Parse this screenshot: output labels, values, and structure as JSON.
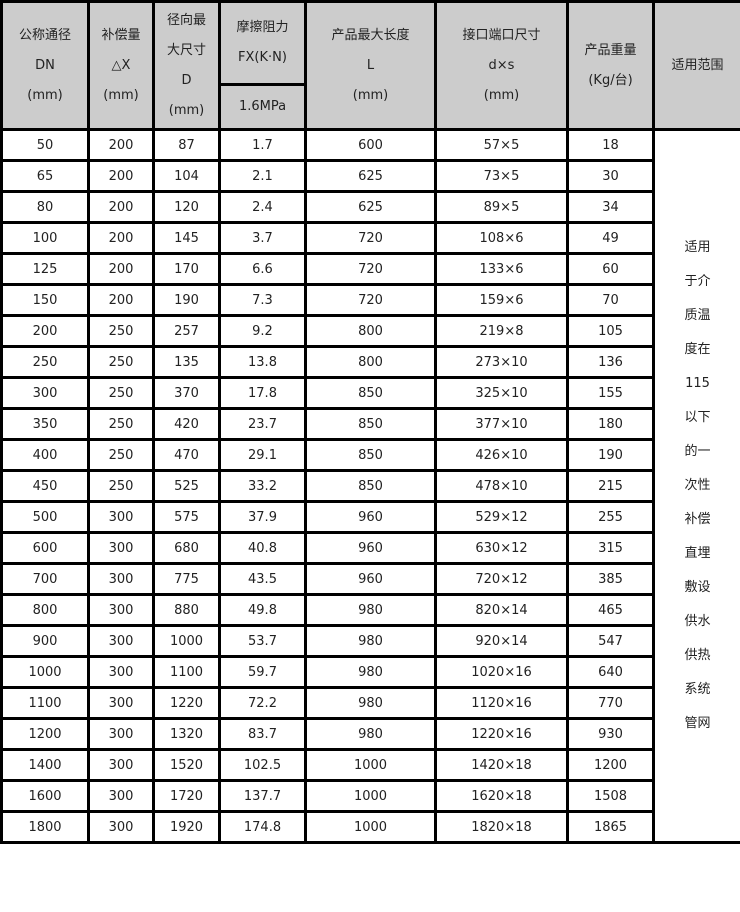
{
  "header": {
    "dn": [
      "公称通径",
      "DN",
      "(mm)"
    ],
    "dx": [
      "补偿量",
      "△X",
      "(mm)"
    ],
    "d": [
      "径向最",
      "大尺寸",
      "D",
      "(mm)"
    ],
    "fx": [
      "摩擦阻力",
      "FX(K·N)"
    ],
    "fx_sub": "1.6MPa",
    "l": [
      "产品最大长度",
      "L",
      "(mm)"
    ],
    "ds": [
      "接口端口尺寸",
      "d×s",
      "(mm)"
    ],
    "weight": [
      "产品重量",
      "(Kg/台)"
    ],
    "scope": "适用范围"
  },
  "rows": [
    [
      "50",
      "200",
      "87",
      "1.7",
      "600",
      "57×5",
      "18"
    ],
    [
      "65",
      "200",
      "104",
      "2.1",
      "625",
      "73×5",
      "30"
    ],
    [
      "80",
      "200",
      "120",
      "2.4",
      "625",
      "89×5",
      "34"
    ],
    [
      "100",
      "200",
      "145",
      "3.7",
      "720",
      "108×6",
      "49"
    ],
    [
      "125",
      "200",
      "170",
      "6.6",
      "720",
      "133×6",
      "60"
    ],
    [
      "150",
      "200",
      "190",
      "7.3",
      "720",
      "159×6",
      "70"
    ],
    [
      "200",
      "250",
      "257",
      "9.2",
      "800",
      "219×8",
      "105"
    ],
    [
      "250",
      "250",
      "135",
      "13.8",
      "800",
      "273×10",
      "136"
    ],
    [
      "300",
      "250",
      "370",
      "17.8",
      "850",
      "325×10",
      "155"
    ],
    [
      "350",
      "250",
      "420",
      "23.7",
      "850",
      "377×10",
      "180"
    ],
    [
      "400",
      "250",
      "470",
      "29.1",
      "850",
      "426×10",
      "190"
    ],
    [
      "450",
      "250",
      "525",
      "33.2",
      "850",
      "478×10",
      "215"
    ],
    [
      "500",
      "300",
      "575",
      "37.9",
      "960",
      "529×12",
      "255"
    ],
    [
      "600",
      "300",
      "680",
      "40.8",
      "960",
      "630×12",
      "315"
    ],
    [
      "700",
      "300",
      "775",
      "43.5",
      "960",
      "720×12",
      "385"
    ],
    [
      "800",
      "300",
      "880",
      "49.8",
      "980",
      "820×14",
      "465"
    ],
    [
      "900",
      "300",
      "1000",
      "53.7",
      "980",
      "920×14",
      "547"
    ],
    [
      "1000",
      "300",
      "1100",
      "59.7",
      "980",
      "1020×16",
      "640"
    ],
    [
      "1100",
      "300",
      "1220",
      "72.2",
      "980",
      "1120×16",
      "770"
    ],
    [
      "1200",
      "300",
      "1320",
      "83.7",
      "980",
      "1220×16",
      "930"
    ],
    [
      "1400",
      "300",
      "1520",
      "102.5",
      "1000",
      "1420×18",
      "1200"
    ],
    [
      "1600",
      "300",
      "1720",
      "137.7",
      "1000",
      "1620×18",
      "1508"
    ],
    [
      "1800",
      "300",
      "1920",
      "174.8",
      "1000",
      "1820×18",
      "1865"
    ]
  ],
  "scope_lines": [
    "适用",
    "于介",
    "质温",
    "度在",
    "115",
    "以下",
    "的一",
    "次性",
    "补偿",
    "直埋",
    "敷设",
    "供水",
    "供热",
    "系统",
    "管网"
  ],
  "colors": {
    "header_bg": "#cccccc",
    "border": "#000000"
  }
}
